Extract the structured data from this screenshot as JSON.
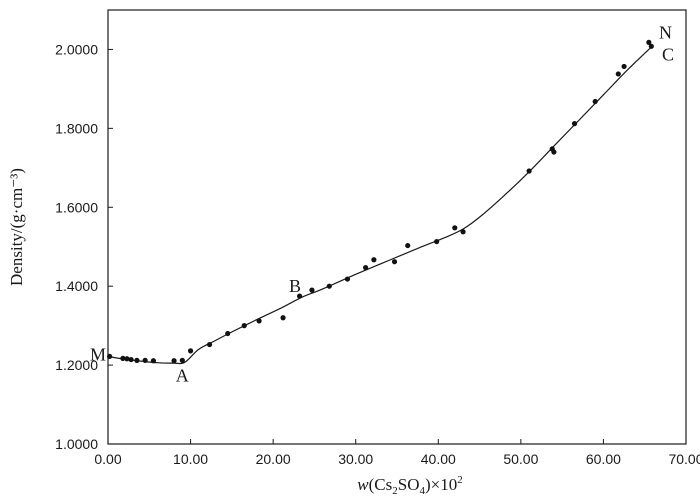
{
  "chart_data": {
    "type": "scatter",
    "ylabel": "Density/(g·cm⁻³)",
    "xlabel": {
      "prefix": "w",
      "open": "(Cs",
      "sub1": "2",
      "mid": "SO",
      "sub2": "4",
      "close": ")×10",
      "sup": "2"
    },
    "xlim": [
      0,
      70
    ],
    "ylim": [
      1.0,
      2.1
    ],
    "xticks": [
      "0.00",
      "10.00",
      "20.00",
      "30.00",
      "40.00",
      "50.00",
      "60.00",
      "70.00"
    ],
    "yticks": [
      "1.0000",
      "1.2000",
      "1.4000",
      "1.6000",
      "1.8000",
      "2.0000"
    ],
    "grid": false,
    "legend": "none",
    "series": [
      {
        "kind": "points",
        "x": [
          0.2,
          1.8,
          2.3,
          2.8,
          3.5,
          4.5,
          5.5,
          8.0,
          9.0,
          10.0,
          12.3,
          14.5,
          16.5,
          18.3,
          21.2,
          23.2,
          24.7,
          26.8,
          29.0,
          31.2,
          32.2,
          34.7,
          36.3,
          39.8,
          42.0,
          43.0,
          51.0,
          53.8,
          54.0,
          56.5,
          59.0,
          61.8,
          62.5,
          65.5,
          65.8
        ],
        "y": [
          1.222,
          1.217,
          1.216,
          1.214,
          1.212,
          1.212,
          1.211,
          1.211,
          1.212,
          1.236,
          1.252,
          1.28,
          1.3,
          1.312,
          1.32,
          1.375,
          1.39,
          1.4,
          1.418,
          1.447,
          1.467,
          1.462,
          1.503,
          1.513,
          1.548,
          1.538,
          1.692,
          1.748,
          1.74,
          1.812,
          1.868,
          1.938,
          1.957,
          2.018,
          2.008
        ]
      },
      {
        "kind": "fitted-curve",
        "x": [
          0,
          2,
          4,
          6,
          8,
          9.3,
          11,
          13,
          15,
          18,
          21,
          23.5,
          26,
          30,
          34,
          38,
          41,
          43,
          45,
          48,
          51,
          54,
          57,
          60,
          63,
          66
        ],
        "y": [
          1.222,
          1.215,
          1.21,
          1.206,
          1.205,
          1.207,
          1.24,
          1.262,
          1.284,
          1.315,
          1.345,
          1.372,
          1.393,
          1.43,
          1.465,
          1.5,
          1.525,
          1.545,
          1.575,
          1.63,
          1.69,
          1.755,
          1.82,
          1.885,
          1.95,
          2.01
        ]
      }
    ],
    "annotations": [
      {
        "label": "M",
        "x": 0,
        "y": 1.222
      },
      {
        "label": "A",
        "x": 9.3,
        "y": 1.207
      },
      {
        "label": "B",
        "x": 23.5,
        "y": 1.372
      },
      {
        "label": "N",
        "x": 66,
        "y": 2.018
      },
      {
        "label": "C",
        "x": 66,
        "y": 2.008
      }
    ]
  }
}
